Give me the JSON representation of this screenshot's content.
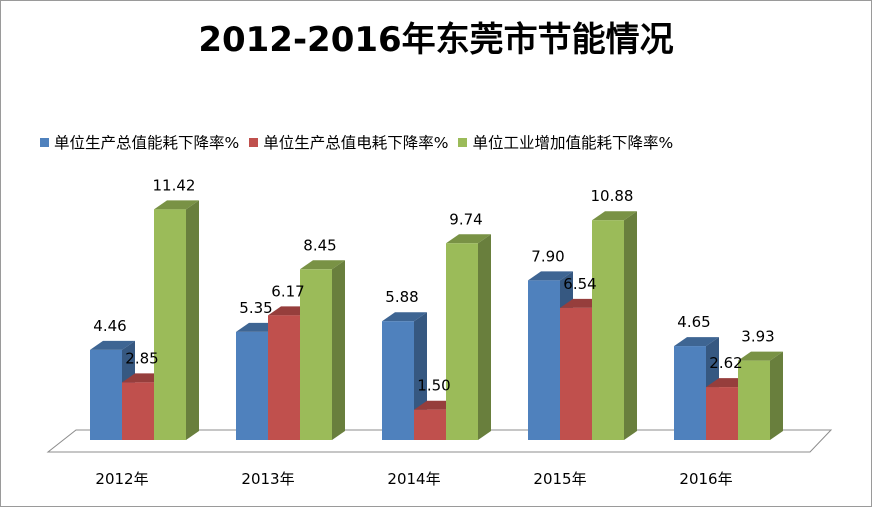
{
  "chart_data": {
    "type": "bar",
    "title": "2012-2016年东莞市节能情况",
    "xlabel": "",
    "ylabel": "",
    "categories": [
      "2012年",
      "2013年",
      "2014年",
      "2015年",
      "2016年"
    ],
    "series": [
      {
        "name": "单位生产总值能耗下降率%",
        "values": [
          4.46,
          5.35,
          5.88,
          7.9,
          4.65
        ],
        "color": "#4f81bd"
      },
      {
        "name": "单位生产总值电耗下降率%",
        "values": [
          2.85,
          6.17,
          1.5,
          6.54,
          2.62
        ],
        "color": "#c0504d"
      },
      {
        "name": "单位工业增加值能耗下降率%",
        "values": [
          11.42,
          8.45,
          9.74,
          10.88,
          3.93
        ],
        "color": "#9bbb59"
      }
    ],
    "value_labels": [
      [
        "4.46",
        "5.35",
        "5.88",
        "7.90",
        "4.65"
      ],
      [
        "2.85",
        "6.17",
        "1.50",
        "6.54",
        "2.62"
      ],
      [
        "11.42",
        "8.45",
        "9.74",
        "10.88",
        "3.93"
      ]
    ],
    "ylim": [
      0,
      12
    ],
    "grid": false,
    "legend_position": "top",
    "style": "3d-clustered-column"
  }
}
